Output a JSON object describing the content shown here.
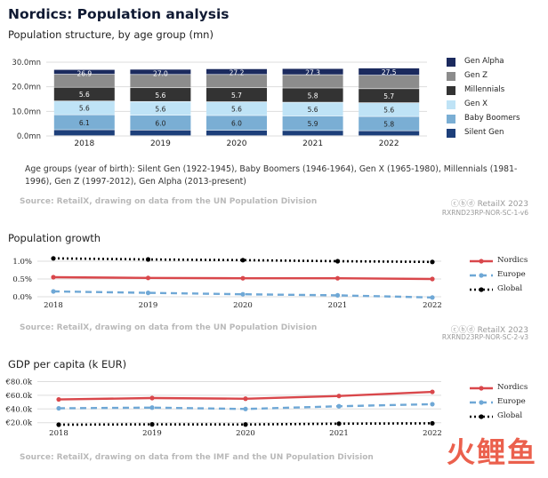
{
  "page": {
    "title": "Nordics: Population analysis",
    "brand": "RetailX 2023"
  },
  "chart1": {
    "subtitle": "Population structure, by age group (mn)",
    "note": "Age groups (year of birth): Silent Gen (1922-1945), Baby Boomers (1946-1964), Gen X (1965-1980), Millennials (1981-1996), Gen Z (1997-2012), Gen Alpha (2013-present)",
    "source": "Source: RetailX, drawing on data from the UN Population Division",
    "code": "RXRND23RP-NOR-SC-1-v6",
    "legend": [
      {
        "name": "Gen Alpha",
        "color": "#1b2a5e"
      },
      {
        "name": "Gen Z",
        "color": "#8c8c8c"
      },
      {
        "name": "Millennials",
        "color": "#333333"
      },
      {
        "name": "Gen X",
        "color": "#bfe3f6"
      },
      {
        "name": "Baby Boomers",
        "color": "#7aaed4"
      },
      {
        "name": "Silent Gen",
        "color": "#1d3f7a"
      }
    ]
  },
  "chart2": {
    "title": "Population growth",
    "source": "Source: RetailX, drawing on data from the UN Population Division",
    "code": "RXRND23RP-NOR-SC-2-v3",
    "legend": [
      {
        "name": "Nordics",
        "color": "#d9474b"
      },
      {
        "name": "Europe",
        "color": "#6fa8d6"
      },
      {
        "name": "Global",
        "color": "#000000"
      }
    ]
  },
  "chart3": {
    "title": "GDP per capita (k EUR)",
    "source": "Source: RetailX, drawing on data from the IMF and the UN Population Division",
    "legend": [
      {
        "name": "Nordics",
        "color": "#d9474b"
      },
      {
        "name": "Europe",
        "color": "#6fa8d6"
      },
      {
        "name": "Global",
        "color": "#000000"
      }
    ]
  },
  "watermark": "火鲤鱼",
  "chart_data": [
    {
      "type": "bar",
      "stacked": true,
      "title": "Population structure, by age group (mn)",
      "categories": [
        "2018",
        "2019",
        "2020",
        "2021",
        "2022"
      ],
      "yticks": [
        "0.0mn",
        "10.0mn",
        "20.0mn",
        "30.0mn"
      ],
      "ylim": [
        0,
        30
      ],
      "totals": [
        26.9,
        27.0,
        27.2,
        27.3,
        27.5
      ],
      "series": [
        {
          "name": "Silent Gen",
          "values": [
            2.4,
            2.3,
            2.2,
            2.1,
            2.0
          ],
          "labels": [
            "",
            "",
            "",
            "",
            ""
          ]
        },
        {
          "name": "Baby Boomers",
          "values": [
            6.1,
            6.0,
            6.0,
            5.9,
            5.8
          ],
          "labels": [
            "6.1",
            "6.0",
            "6.0",
            "5.9",
            "5.8"
          ]
        },
        {
          "name": "Gen X",
          "values": [
            5.6,
            5.6,
            5.6,
            5.6,
            5.6
          ],
          "labels": [
            "5.6",
            "5.6",
            "5.6",
            "5.6",
            "5.6"
          ]
        },
        {
          "name": "Millennials",
          "values": [
            5.6,
            5.6,
            5.7,
            5.8,
            5.7
          ],
          "labels": [
            "5.6",
            "5.6",
            "5.7",
            "5.8",
            "5.7"
          ]
        },
        {
          "name": "Gen Z",
          "values": [
            5.3,
            5.4,
            5.4,
            5.4,
            5.5
          ],
          "labels": [
            "",
            "",
            "",
            "",
            ""
          ]
        },
        {
          "name": "Gen Alpha",
          "values": [
            1.9,
            2.1,
            2.3,
            2.5,
            2.9
          ],
          "labels": [
            "",
            "",
            "",
            "",
            ""
          ]
        }
      ],
      "total_labels": [
        "26.9",
        "27.0",
        "27.2",
        "27.3",
        "27.5"
      ],
      "legend_position": "right"
    },
    {
      "type": "line",
      "title": "Population growth",
      "x": [
        "2018",
        "2019",
        "2020",
        "2021",
        "2022"
      ],
      "yticks": [
        "0.0%",
        "0.5%",
        "1.0%"
      ],
      "ylim": [
        0,
        1.2
      ],
      "series": [
        {
          "name": "Nordics",
          "values": [
            0.55,
            0.53,
            0.52,
            0.52,
            0.5
          ]
        },
        {
          "name": "Europe",
          "values": [
            0.15,
            0.11,
            0.07,
            0.04,
            -0.02
          ]
        },
        {
          "name": "Global",
          "values": [
            1.08,
            1.05,
            1.03,
            1.0,
            0.98
          ]
        }
      ],
      "legend_position": "right"
    },
    {
      "type": "line",
      "title": "GDP per capita (k EUR)",
      "x": [
        "2018",
        "2019",
        "2020",
        "2021",
        "2022"
      ],
      "yticks": [
        "€20.0k",
        "€40.0k",
        "€60.0k",
        "€80.0k"
      ],
      "ylim": [
        17,
        82
      ],
      "series": [
        {
          "name": "Nordics",
          "values": [
            54,
            56,
            55,
            59,
            65
          ]
        },
        {
          "name": "Europe",
          "values": [
            41,
            42,
            40,
            44,
            47
          ]
        },
        {
          "name": "Global",
          "values": [
            17,
            17.5,
            17.3,
            18.5,
            19
          ]
        }
      ],
      "legend_position": "right"
    }
  ]
}
